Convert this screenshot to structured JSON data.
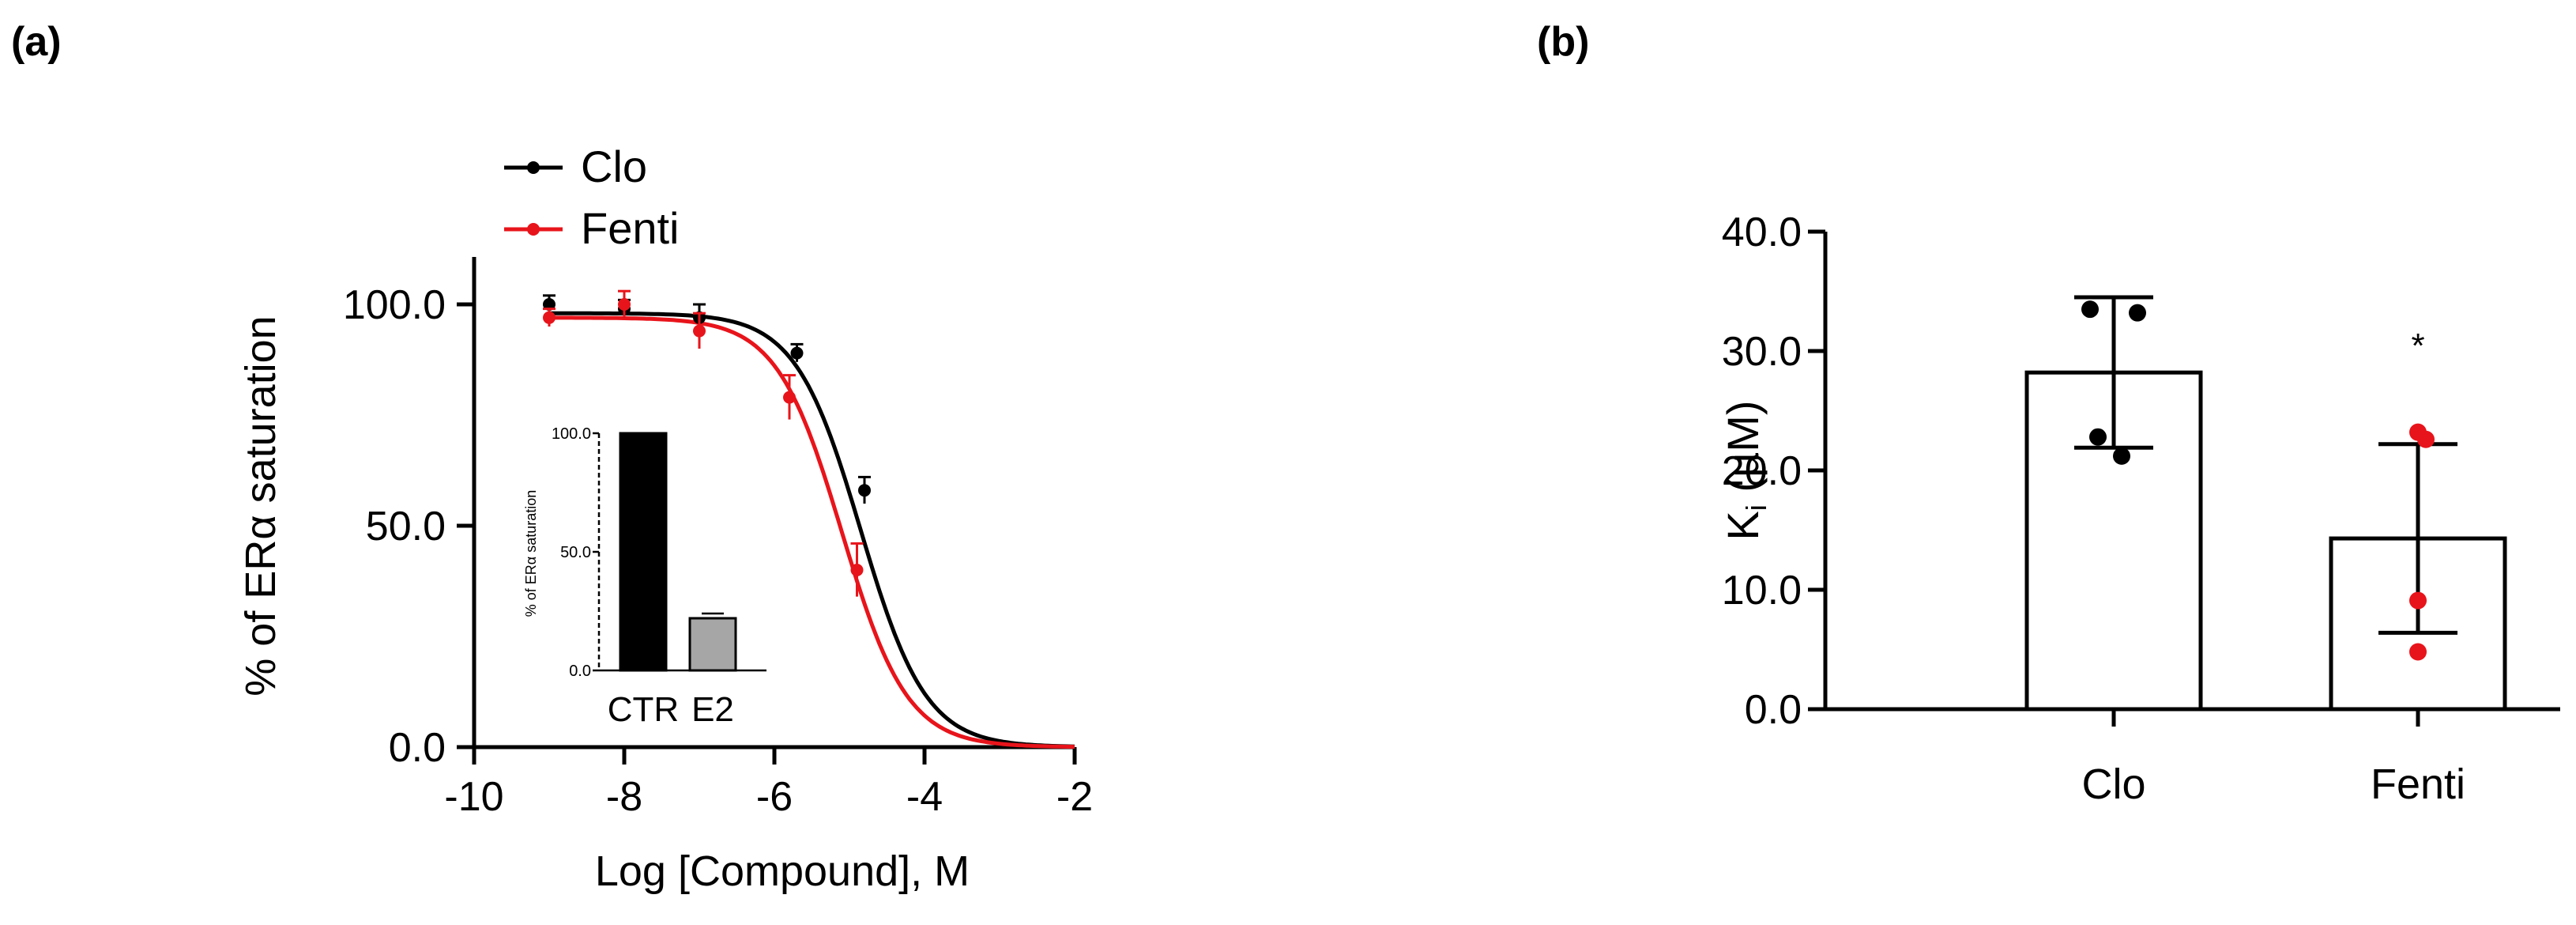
{
  "panels": {
    "a": {
      "label": "(a)"
    },
    "b": {
      "label": "(b)"
    }
  },
  "colors": {
    "clo": "#000000",
    "fenti": "#e8141b",
    "e2_bar": "#a6a6a6"
  },
  "chart_data": [
    {
      "type": "line",
      "panel": "a",
      "xlabel": "Log [Compound], M",
      "ylabel": "% of ERα saturation",
      "xlim": [
        -10,
        -2
      ],
      "ylim": [
        0,
        100
      ],
      "xticks": [
        -10,
        -8,
        -6,
        -4,
        -2
      ],
      "xtick_labels": [
        "-10",
        "-8",
        "-6",
        "-4",
        "-2"
      ],
      "yticks": [
        0,
        50,
        100
      ],
      "ytick_labels": [
        "0.0",
        "50.0",
        "100.0"
      ],
      "legend": {
        "position": "top-left",
        "entries": [
          "Clo",
          "Fenti"
        ]
      },
      "series": [
        {
          "name": "Clo",
          "color": "#000000",
          "points": [
            {
              "x": -9,
              "y": 100,
              "err": 2
            },
            {
              "x": -8,
              "y": 99,
              "err": 2
            },
            {
              "x": -7,
              "y": 97,
              "err": 3
            },
            {
              "x": -5.7,
              "y": 89,
              "err": 2
            },
            {
              "x": -4.8,
              "y": 58,
              "err": 3
            }
          ],
          "fit": {
            "top": 98,
            "bottom": 0,
            "log_ic50": -4.85,
            "hill": 1
          }
        },
        {
          "name": "Fenti",
          "color": "#e8141b",
          "points": [
            {
              "x": -9,
              "y": 97,
              "err": 2
            },
            {
              "x": -8,
              "y": 100,
              "err": 3
            },
            {
              "x": -7,
              "y": 94,
              "err": 4
            },
            {
              "x": -5.8,
              "y": 79,
              "err": 5
            },
            {
              "x": -4.9,
              "y": 40,
              "err": 6
            }
          ],
          "fit": {
            "top": 97,
            "bottom": 0,
            "log_ic50": -5.1,
            "hill": 1
          }
        }
      ]
    },
    {
      "type": "bar",
      "panel": "a-inset",
      "categories": [
        "CTR",
        "E2"
      ],
      "values": [
        100,
        22
      ],
      "errors": [
        0,
        2
      ],
      "ylabel": "% of ERα saturation",
      "ylim": [
        0,
        100
      ],
      "yticks": [
        0,
        50,
        100
      ],
      "ytick_labels": [
        "0.0",
        "50.0",
        "100.0"
      ],
      "colors": [
        "#000000",
        "#a6a6a6"
      ]
    },
    {
      "type": "bar",
      "panel": "b",
      "categories": [
        "Clo",
        "Fenti"
      ],
      "values": [
        28.2,
        14.3
      ],
      "sd": [
        6.3,
        7.9
      ],
      "points": [
        [
          33.5,
          33.2,
          22.8,
          21.2
        ],
        [
          23.2,
          22.6,
          9.1,
          4.8
        ]
      ],
      "point_colors": [
        "#000000",
        "#e8141b"
      ],
      "ylabel_main": "K",
      "ylabel_sub": "i",
      "ylabel_unit": " (µM)",
      "ylim": [
        0,
        40
      ],
      "yticks": [
        0,
        10,
        20,
        30,
        40
      ],
      "ytick_labels": [
        "0.0",
        "10.0",
        "20.0",
        "30.0",
        "40.0"
      ],
      "annotations": [
        {
          "category": "Fenti",
          "text": "*"
        }
      ]
    }
  ]
}
